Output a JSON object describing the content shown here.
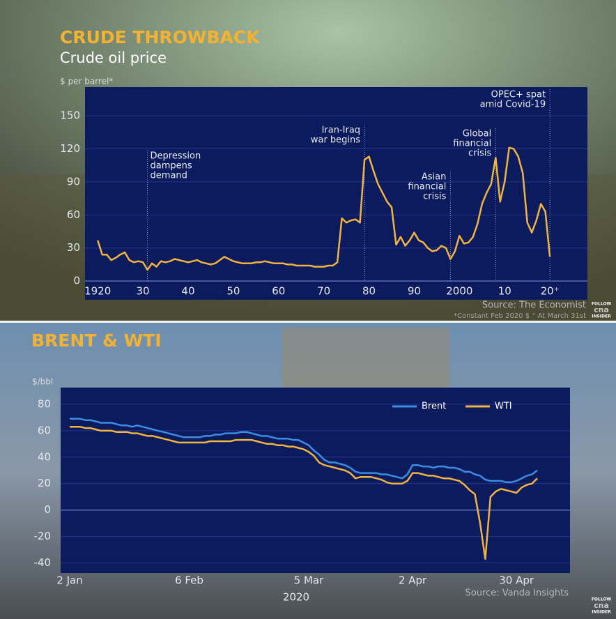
{
  "chart_data": [
    {
      "type": "line",
      "title": "CRUDE THROWBACK",
      "subtitle": "Crude oil price",
      "y_label": "$ per barrel*",
      "x": [
        1920,
        1921,
        1922,
        1923,
        1924,
        1925,
        1926,
        1927,
        1928,
        1929,
        1930,
        1931,
        1932,
        1933,
        1934,
        1935,
        1936,
        1937,
        1938,
        1939,
        1940,
        1941,
        1942,
        1943,
        1944,
        1945,
        1946,
        1947,
        1948,
        1949,
        1950,
        1951,
        1952,
        1953,
        1954,
        1955,
        1956,
        1957,
        1958,
        1959,
        1960,
        1961,
        1962,
        1963,
        1964,
        1965,
        1966,
        1967,
        1968,
        1969,
        1970,
        1971,
        1972,
        1973,
        1974,
        1975,
        1976,
        1977,
        1978,
        1979,
        1980,
        1981,
        1982,
        1983,
        1984,
        1985,
        1986,
        1987,
        1988,
        1989,
        1990,
        1991,
        1992,
        1993,
        1994,
        1995,
        1996,
        1997,
        1998,
        1999,
        2000,
        2001,
        2002,
        2003,
        2004,
        2005,
        2006,
        2007,
        2008,
        2009,
        2010,
        2011,
        2012,
        2013,
        2014,
        2015,
        2016,
        2017,
        2018,
        2019,
        2020
      ],
      "values": [
        37,
        24,
        24,
        19,
        21,
        24,
        26,
        19,
        17,
        18,
        17,
        10,
        16,
        13,
        18,
        17,
        18,
        20,
        19,
        18,
        17,
        18,
        19,
        17,
        16,
        15,
        16,
        19,
        22,
        20,
        18,
        17,
        16,
        16,
        16,
        17,
        17,
        18,
        17,
        16,
        16,
        16,
        15,
        15,
        14,
        14,
        14,
        14,
        13,
        13,
        13,
        14,
        14,
        17,
        57,
        53,
        55,
        56,
        53,
        110,
        113,
        100,
        88,
        80,
        72,
        67,
        33,
        40,
        32,
        37,
        44,
        37,
        35,
        30,
        27,
        28,
        32,
        30,
        20,
        27,
        41,
        34,
        35,
        40,
        52,
        70,
        80,
        88,
        112,
        72,
        90,
        121,
        120,
        113,
        98,
        53,
        44,
        55,
        70,
        63,
        22
      ],
      "color": "#f2b53f",
      "xlim": [
        1917.2,
        2028.3
      ],
      "xticks": [
        1920,
        {
          "value": 1930,
          "label": "30"
        },
        {
          "value": 1940,
          "label": "40"
        },
        {
          "value": 1950,
          "label": "50"
        },
        {
          "value": 1960,
          "label": "60"
        },
        {
          "value": 1970,
          "label": "70"
        },
        {
          "value": 1980,
          "label": "80"
        },
        {
          "value": 1990,
          "label": "90"
        },
        2000,
        {
          "value": 2010,
          "label": "10"
        },
        {
          "value": 2020,
          "label": "20⁺"
        }
      ],
      "ylim": [
        -17,
        176
      ],
      "yticks": [
        0,
        30,
        60,
        90,
        120,
        150
      ],
      "grid": true,
      "annotations": [
        {
          "x": 1931,
          "lines": [
            "Depression",
            "dampens",
            "demand"
          ]
        },
        {
          "x": 1979,
          "lines": [
            "Iran-Iraq",
            "war begins"
          ]
        },
        {
          "x": 1998,
          "lines": [
            "Asian",
            "financial",
            "crisis"
          ]
        },
        {
          "x": 2008,
          "lines": [
            "Global",
            "financial",
            "crisis"
          ]
        },
        {
          "x": 2020,
          "lines": [
            "OPEC+ spat",
            "amid Covid-19"
          ]
        }
      ],
      "source": "Source: The Economist",
      "footnote": "*Constant Feb 2020 $ ⁺ At March 31st"
    },
    {
      "type": "line",
      "title": "BRENT & WTI",
      "y_label": "$/bbl",
      "x_label": "2020",
      "categories": [
        "2 Jan",
        null,
        null,
        null,
        null,
        null,
        null,
        null,
        null,
        null,
        null,
        null,
        null,
        null,
        null,
        null,
        null,
        null,
        null,
        null,
        null,
        null,
        null,
        "6 Feb",
        null,
        null,
        null,
        null,
        null,
        null,
        null,
        null,
        null,
        null,
        null,
        null,
        null,
        null,
        null,
        null,
        null,
        null,
        null,
        null,
        null,
        null,
        "5 Mar",
        null,
        null,
        null,
        null,
        null,
        null,
        null,
        null,
        null,
        null,
        null,
        null,
        null,
        null,
        null,
        null,
        null,
        null,
        null,
        "2 Apr",
        null,
        null,
        null,
        null,
        null,
        null,
        null,
        null,
        null,
        null,
        null,
        null,
        null,
        null,
        null,
        null,
        null,
        null,
        null,
        "30 Apr",
        null,
        null,
        null,
        null
      ],
      "series": [
        {
          "name": "Brent",
          "color": "#3b8fe2",
          "values": [
            69,
            69,
            69,
            68,
            68,
            67,
            66,
            66,
            66,
            65,
            64,
            64,
            63,
            64,
            63,
            62,
            61,
            60,
            59,
            58,
            57,
            56,
            55,
            55,
            55,
            55,
            56,
            56,
            57,
            57,
            58,
            58,
            58,
            59,
            59,
            58,
            57,
            56,
            56,
            55,
            54,
            54,
            54,
            53,
            53,
            51,
            49,
            45,
            42,
            38,
            36,
            36,
            35,
            34,
            32,
            29,
            28,
            28,
            28,
            28,
            27,
            27,
            26,
            25,
            24,
            27,
            34,
            34,
            33,
            33,
            32,
            33,
            33,
            32,
            32,
            31,
            29,
            29,
            27,
            26,
            23,
            22,
            22,
            22,
            21,
            21,
            22,
            24,
            26,
            27,
            30
          ]
        },
        {
          "name": "WTI",
          "color": "#f2b53f",
          "values": [
            63,
            63,
            63,
            62,
            62,
            61,
            60,
            60,
            60,
            59,
            59,
            59,
            58,
            58,
            57,
            56,
            56,
            55,
            54,
            53,
            52,
            51,
            51,
            51,
            51,
            51,
            51,
            52,
            52,
            52,
            52,
            52,
            53,
            53,
            53,
            53,
            52,
            51,
            50,
            50,
            49,
            49,
            48,
            48,
            47,
            46,
            44,
            41,
            36,
            34,
            33,
            32,
            31,
            30,
            28,
            24,
            25,
            25,
            25,
            24,
            23,
            21,
            20,
            20,
            20,
            22,
            28,
            28,
            27,
            26,
            26,
            25,
            24,
            24,
            23,
            22,
            19,
            15,
            12,
            -10,
            -37,
            10,
            14,
            16,
            15,
            14,
            13,
            17,
            19,
            20,
            24
          ]
        }
      ],
      "ylim": [
        -47.6,
        92.6
      ],
      "yticks": [
        -40,
        -20,
        0,
        20,
        40,
        60,
        80
      ],
      "grid": true,
      "legend": "top-right",
      "source": "Source: Vanda Insights"
    }
  ],
  "watermark": [
    "FOLLOW",
    "cna",
    "INSIDER"
  ]
}
